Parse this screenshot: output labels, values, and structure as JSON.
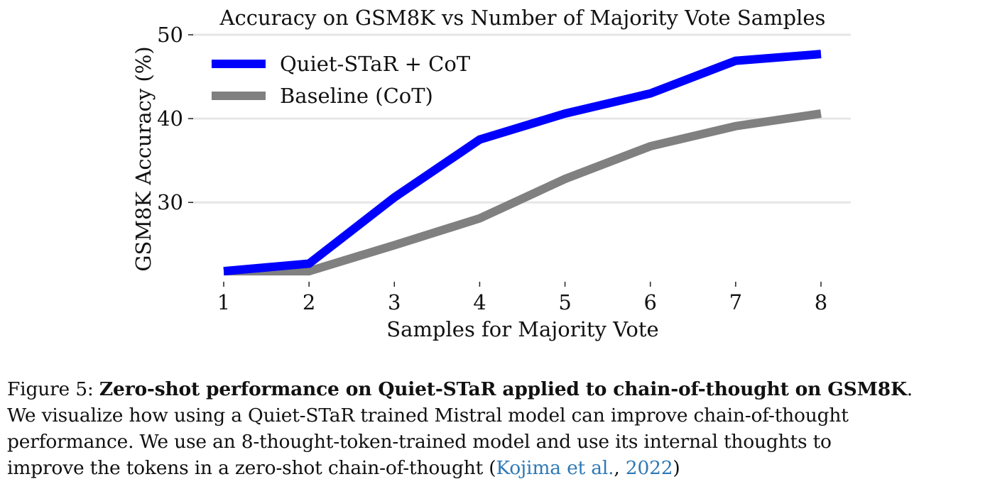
{
  "chart_data": {
    "type": "line",
    "title": "Accuracy on GSM8K vs Number of Majority Vote Samples",
    "xlabel": "Samples for Majority Vote",
    "ylabel": "GSM8K Accuracy (%)",
    "x": [
      1,
      2,
      3,
      4,
      5,
      6,
      7,
      8
    ],
    "x_ticks": [
      "1",
      "2",
      "3",
      "4",
      "5",
      "6",
      "7",
      "8"
    ],
    "y_ticks": [
      "30",
      "40",
      "50"
    ],
    "xlim": [
      1,
      8
    ],
    "ylim": [
      21.3,
      50
    ],
    "grid": "horizontal",
    "legend_position": "top-left",
    "series": [
      {
        "name": "Quiet-STaR + CoT",
        "color": "#0000ff",
        "values": [
          21.8,
          22.7,
          30.6,
          37.5,
          40.6,
          43.0,
          46.9,
          47.7
        ]
      },
      {
        "name": "Baseline (CoT)",
        "color": "#808080",
        "values": [
          21.8,
          21.8,
          24.9,
          28.1,
          32.8,
          36.7,
          39.1,
          40.6
        ]
      }
    ]
  },
  "caption": {
    "figure_label": "Figure 5: ",
    "bold_title": "Zero-shot performance on Quiet-STaR applied to chain-of-thought on GSM8K",
    "title_end": ".",
    "line2": "We visualize how using a Quiet-STaR trained Mistral model can improve chain-of-thought",
    "line3": "performance.  We use an 8-thought-token-trained model and use its internal thoughts to",
    "line4_pre": "improve the tokens in a zero-shot chain-of-thought (",
    "cite_author": "Kojima et al.",
    "cite_sep": ", ",
    "cite_year": "2022",
    "line4_post": ")"
  }
}
